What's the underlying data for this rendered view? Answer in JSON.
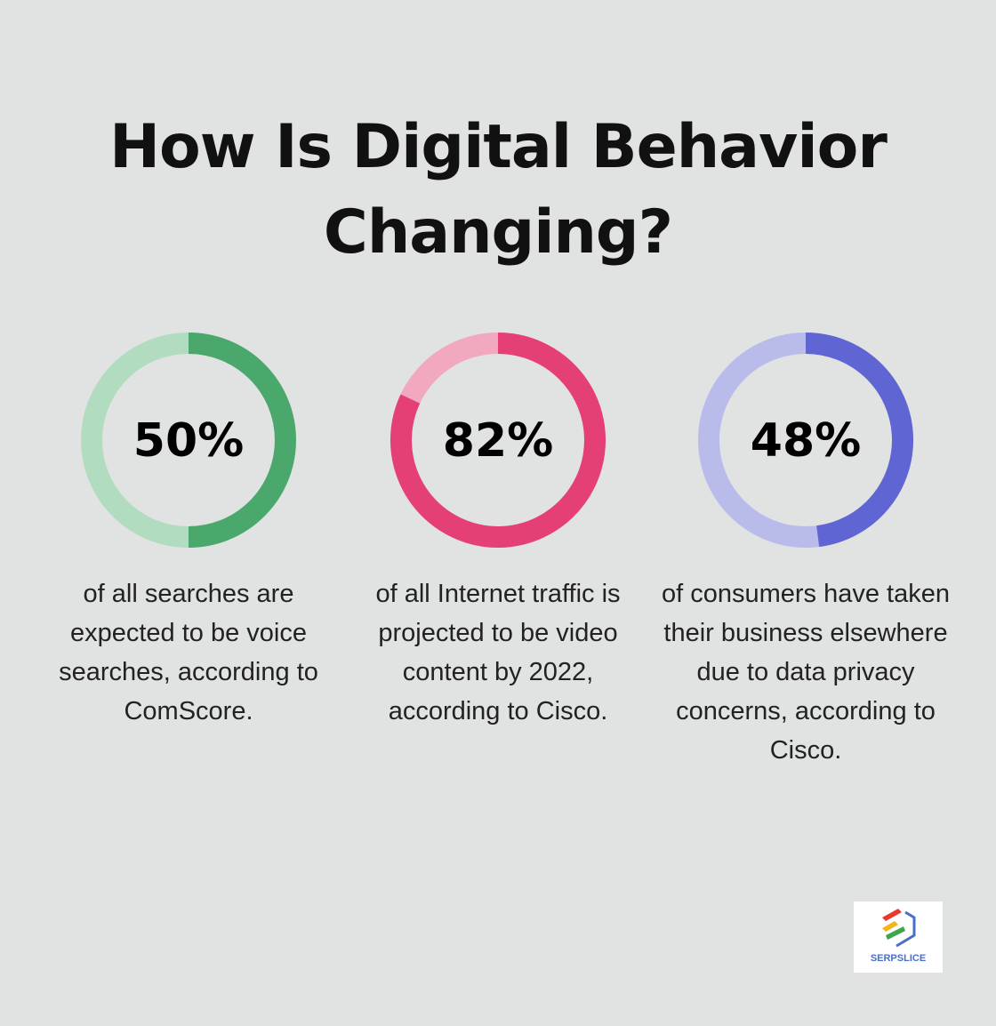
{
  "title": "How Is Digital Behavior Changing?",
  "chart_data": [
    {
      "type": "pie",
      "variant": "donut",
      "value": 50,
      "label": "50%",
      "description": "of all searches are expected to be voice searches, according to ComScore.",
      "color": "#4ba86c",
      "track_color": "#b2dcc0"
    },
    {
      "type": "pie",
      "variant": "donut",
      "value": 82,
      "label": "82%",
      "description": "of all Internet traffic is projected to be video content by 2022, according to Cisco.",
      "color": "#e54076",
      "track_color": "#f2a9c0"
    },
    {
      "type": "pie",
      "variant": "donut",
      "value": 48,
      "label": "48%",
      "description": "of consumers have taken their business elsewhere due to data privacy concerns, according to Cisco.",
      "color": "#6065d4",
      "track_color": "#b9bbeb"
    }
  ],
  "logo": {
    "text": "SERPSLICE"
  }
}
